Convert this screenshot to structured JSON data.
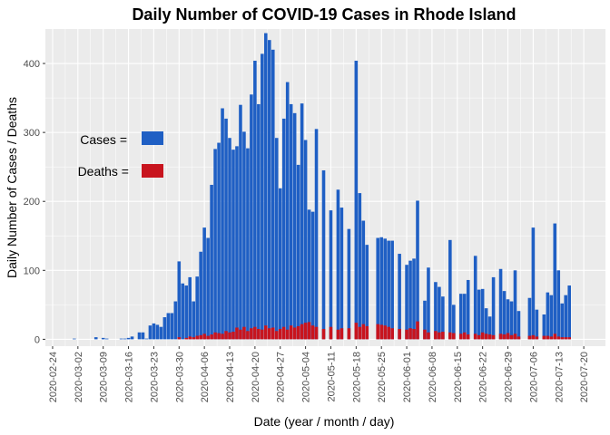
{
  "chart_data": {
    "type": "bar",
    "title": "Daily Number of COVID-19 Cases in Rhode Island",
    "xlabel": "Date (year / month / day)",
    "ylabel": "Daily Number of Cases / Deaths",
    "ylim": [
      -10,
      450
    ],
    "y_ticks": [
      0,
      100,
      200,
      300,
      400
    ],
    "x_ticks": [
      "2020-02-24",
      "2020-03-02",
      "2020-03-09",
      "2020-03-16",
      "2020-03-23",
      "2020-03-30",
      "2020-04-06",
      "2020-04-13",
      "2020-04-20",
      "2020-04-27",
      "2020-05-04",
      "2020-05-11",
      "2020-05-18",
      "2020-05-25",
      "2020-06-01",
      "2020-06-08",
      "2020-06-15",
      "2020-06-22",
      "2020-06-29",
      "2020-07-06",
      "2020-07-13",
      "2020-07-20"
    ],
    "xlim": [
      "2020-02-22",
      "2020-07-26"
    ],
    "grid": true,
    "legend_placement": "left",
    "legend": [
      {
        "label": "Cases =",
        "color": "#1f5fc4"
      },
      {
        "label": "Deaths =",
        "color": "#c8141e"
      }
    ],
    "colors": {
      "cases": "#1f5fc4",
      "deaths": "#c8141e",
      "panel": "#ebebeb",
      "grid": "#ffffff"
    },
    "series": [
      {
        "name": "Cases",
        "dates": [
          "2020-03-01",
          "2020-03-07",
          "2020-03-09",
          "2020-03-10",
          "2020-03-14",
          "2020-03-15",
          "2020-03-16",
          "2020-03-17",
          "2020-03-19",
          "2020-03-20",
          "2020-03-21",
          "2020-03-22",
          "2020-03-23",
          "2020-03-24",
          "2020-03-25",
          "2020-03-26",
          "2020-03-27",
          "2020-03-28",
          "2020-03-29",
          "2020-03-30",
          "2020-03-31",
          "2020-04-01",
          "2020-04-02",
          "2020-04-03",
          "2020-04-04",
          "2020-04-05",
          "2020-04-06",
          "2020-04-07",
          "2020-04-08",
          "2020-04-09",
          "2020-04-10",
          "2020-04-11",
          "2020-04-12",
          "2020-04-13",
          "2020-04-14",
          "2020-04-15",
          "2020-04-16",
          "2020-04-17",
          "2020-04-18",
          "2020-04-19",
          "2020-04-20",
          "2020-04-21",
          "2020-04-22",
          "2020-04-23",
          "2020-04-24",
          "2020-04-25",
          "2020-04-26",
          "2020-04-27",
          "2020-04-28",
          "2020-04-29",
          "2020-04-30",
          "2020-05-01",
          "2020-05-02",
          "2020-05-03",
          "2020-05-04",
          "2020-05-05",
          "2020-05-06",
          "2020-05-07",
          "2020-05-09",
          "2020-05-11",
          "2020-05-13",
          "2020-05-14",
          "2020-05-16",
          "2020-05-18",
          "2020-05-19",
          "2020-05-20",
          "2020-05-21",
          "2020-05-24",
          "2020-05-25",
          "2020-05-26",
          "2020-05-27",
          "2020-05-28",
          "2020-05-30",
          "2020-06-01",
          "2020-06-02",
          "2020-06-03",
          "2020-06-04",
          "2020-06-06",
          "2020-06-07",
          "2020-06-09",
          "2020-06-10",
          "2020-06-11",
          "2020-06-13",
          "2020-06-14",
          "2020-06-16",
          "2020-06-17",
          "2020-06-18",
          "2020-06-20",
          "2020-06-21",
          "2020-06-22",
          "2020-06-23",
          "2020-06-24",
          "2020-06-25",
          "2020-06-27",
          "2020-06-28",
          "2020-06-29",
          "2020-06-30",
          "2020-07-01",
          "2020-07-02",
          "2020-07-05",
          "2020-07-06",
          "2020-07-07",
          "2020-07-09",
          "2020-07-10",
          "2020-07-11",
          "2020-07-12",
          "2020-07-13",
          "2020-07-14",
          "2020-07-15",
          "2020-07-16"
        ],
        "values": [
          1,
          3,
          2,
          1,
          1,
          1,
          2,
          4,
          10,
          10,
          1,
          20,
          23,
          21,
          18,
          32,
          38,
          38,
          55,
          113,
          81,
          78,
          90,
          55,
          91,
          127,
          162,
          147,
          224,
          276,
          285,
          335,
          320,
          292,
          275,
          280,
          340,
          301,
          277,
          355,
          404,
          341,
          414,
          444,
          434,
          420,
          292,
          219,
          320,
          373,
          341,
          328,
          253,
          342,
          289,
          188,
          185,
          305,
          245,
          187,
          217,
          191,
          160,
          404,
          212,
          172,
          137,
          147,
          148,
          146,
          143,
          143,
          124,
          108,
          114,
          117,
          201,
          56,
          104,
          83,
          76,
          62,
          144,
          50,
          66,
          66,
          86,
          121,
          72,
          73,
          45,
          33,
          90,
          102,
          70,
          58,
          55,
          100,
          41,
          60,
          162,
          43,
          36,
          68,
          64,
          168,
          100,
          52,
          64,
          78
        ]
      },
      {
        "name": "Deaths",
        "dates": [
          "2020-03-30",
          "2020-04-01",
          "2020-04-02",
          "2020-04-03",
          "2020-04-04",
          "2020-04-05",
          "2020-04-06",
          "2020-04-07",
          "2020-04-08",
          "2020-04-09",
          "2020-04-10",
          "2020-04-11",
          "2020-04-12",
          "2020-04-13",
          "2020-04-14",
          "2020-04-15",
          "2020-04-16",
          "2020-04-17",
          "2020-04-18",
          "2020-04-19",
          "2020-04-20",
          "2020-04-21",
          "2020-04-22",
          "2020-04-23",
          "2020-04-24",
          "2020-04-25",
          "2020-04-26",
          "2020-04-27",
          "2020-04-28",
          "2020-04-29",
          "2020-04-30",
          "2020-05-01",
          "2020-05-02",
          "2020-05-03",
          "2020-05-04",
          "2020-05-05",
          "2020-05-06",
          "2020-05-07",
          "2020-05-09",
          "2020-05-11",
          "2020-05-13",
          "2020-05-14",
          "2020-05-16",
          "2020-05-18",
          "2020-05-19",
          "2020-05-20",
          "2020-05-21",
          "2020-05-24",
          "2020-05-25",
          "2020-05-26",
          "2020-05-27",
          "2020-05-28",
          "2020-05-30",
          "2020-06-01",
          "2020-06-02",
          "2020-06-03",
          "2020-06-04",
          "2020-06-06",
          "2020-06-07",
          "2020-06-09",
          "2020-06-10",
          "2020-06-11",
          "2020-06-13",
          "2020-06-14",
          "2020-06-16",
          "2020-06-17",
          "2020-06-18",
          "2020-06-20",
          "2020-06-21",
          "2020-06-22",
          "2020-06-23",
          "2020-06-24",
          "2020-06-25",
          "2020-06-27",
          "2020-06-28",
          "2020-06-29",
          "2020-06-30",
          "2020-07-01",
          "2020-07-02",
          "2020-07-05",
          "2020-07-06",
          "2020-07-07",
          "2020-07-09",
          "2020-07-10",
          "2020-07-11",
          "2020-07-12",
          "2020-07-13",
          "2020-07-14",
          "2020-07-15",
          "2020-07-16"
        ],
        "values": [
          3,
          2,
          4,
          3,
          5,
          6,
          8,
          5,
          7,
          10,
          9,
          8,
          12,
          10,
          11,
          17,
          14,
          18,
          12,
          16,
          18,
          15,
          14,
          20,
          16,
          17,
          12,
          15,
          18,
          14,
          20,
          17,
          19,
          22,
          24,
          25,
          20,
          18,
          15,
          18,
          14,
          16,
          16,
          24,
          18,
          22,
          19,
          22,
          21,
          20,
          18,
          16,
          15,
          14,
          16,
          15,
          26,
          14,
          10,
          12,
          10,
          11,
          10,
          9,
          8,
          10,
          7,
          8,
          6,
          10,
          8,
          7,
          6,
          8,
          7,
          9,
          6,
          8,
          4,
          5,
          6,
          4,
          5,
          5,
          4,
          8,
          4,
          3,
          3,
          3
        ]
      }
    ]
  }
}
